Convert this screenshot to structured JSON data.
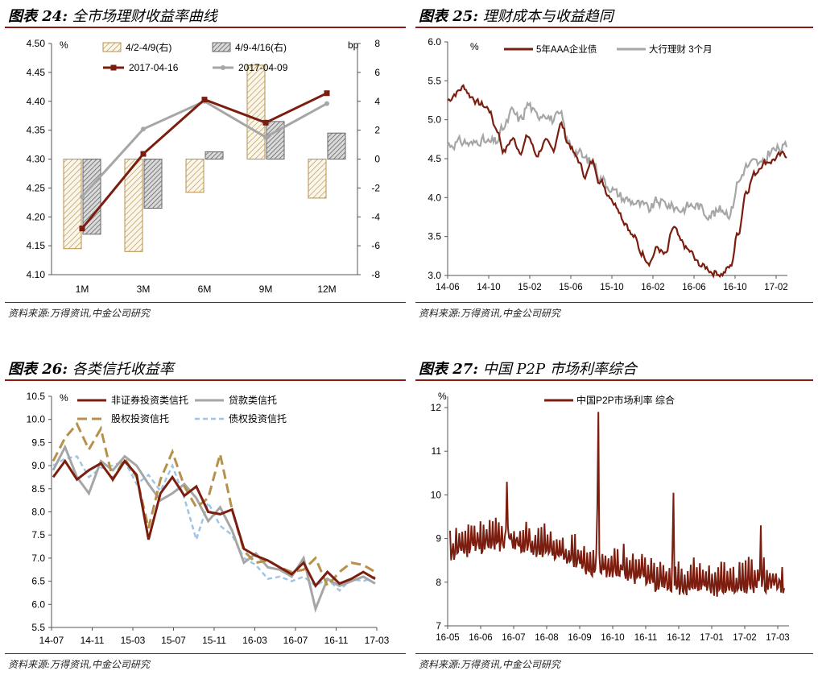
{
  "colors": {
    "brand": "#8a1a12",
    "maroon": "#7b1e10",
    "gray": "#a6a6a6",
    "tan": "#b5914c",
    "lightblue": "#9fc5e6",
    "hatchgray": "#666666"
  },
  "panels": [
    {
      "id": "p24",
      "title_label": "图表 24:",
      "title_text": "全市场理财收益率曲线",
      "source": "资料来源:万得资讯,中金公司研究"
    },
    {
      "id": "p25",
      "title_label": "图表 25:",
      "title_text": "理财成本与收益趋同",
      "source": "资料来源:万得资讯,中金公司研究"
    },
    {
      "id": "p26",
      "title_label": "图表 26:",
      "title_text": "各类信托收益率",
      "source": "资料来源:万得资讯,中金公司研究"
    },
    {
      "id": "p27",
      "title_label": "图表 27:",
      "title_text": "中国 P2P 市场利率综合",
      "source": "资料来源:万得资讯,中金公司研究"
    }
  ],
  "chart_data": [
    {
      "id": "p24",
      "type": "bar+line",
      "categories": [
        "1M",
        "3M",
        "6M",
        "9M",
        "12M"
      ],
      "y_left": {
        "unit": "%",
        "min": 4.1,
        "max": 4.5,
        "step": 0.05,
        "ticks": [
          "4.10",
          "4.15",
          "4.20",
          "4.25",
          "4.30",
          "4.35",
          "4.40",
          "4.45",
          "4.50"
        ]
      },
      "y_right": {
        "unit": "bp",
        "min": -8,
        "max": 8,
        "step": 2,
        "ticks": [
          "-8",
          "-6",
          "-4",
          "-2",
          "0",
          "2",
          "4",
          "6",
          "8"
        ]
      },
      "bars": [
        {
          "name": "4/2-4/9(右)",
          "axis": "right",
          "values": [
            -6.2,
            -6.4,
            -2.3,
            6.5,
            -2.7
          ]
        },
        {
          "name": "4/9-4/16(右)",
          "axis": "right",
          "values": [
            -5.2,
            -3.4,
            0.5,
            2.6,
            1.8
          ]
        }
      ],
      "series": [
        {
          "name": "2017-04-16",
          "axis": "left",
          "values": [
            4.18,
            4.309,
            4.403,
            4.363,
            4.414
          ]
        },
        {
          "name": "2017-04-09",
          "axis": "left",
          "values": [
            4.235,
            4.352,
            4.4,
            4.338,
            4.396
          ]
        }
      ]
    },
    {
      "id": "p25",
      "type": "line",
      "x_ticks": [
        "14-06",
        "14-10",
        "15-02",
        "15-06",
        "15-10",
        "16-02",
        "16-06",
        "16-10",
        "17-02"
      ],
      "y": {
        "unit": "%",
        "min": 3.0,
        "max": 6.0,
        "step": 0.5,
        "ticks": [
          "3.0",
          "3.5",
          "4.0",
          "4.5",
          "5.0",
          "5.5",
          "6.0"
        ]
      },
      "series": [
        {
          "name": "5年AAA企业债",
          "anchors": [
            5.25,
            5.35,
            5.42,
            5.3,
            5.2,
            5.15,
            4.9,
            4.6,
            4.75,
            4.62,
            4.78,
            4.55,
            4.7,
            4.6,
            4.95,
            4.7,
            4.5,
            4.3,
            4.45,
            4.2,
            4.05,
            3.9,
            3.7,
            3.5,
            3.3,
            3.2,
            3.35,
            3.25,
            3.6,
            3.4,
            3.3,
            3.15,
            3.1,
            3.05,
            3.03,
            3.1,
            3.55,
            4.1,
            4.3,
            4.45,
            4.48,
            4.52,
            4.55
          ]
        },
        {
          "name": "大行理财 3个月",
          "anchors": [
            4.68,
            4.7,
            4.72,
            4.68,
            4.75,
            4.7,
            4.72,
            4.9,
            5.1,
            5.0,
            5.2,
            5.05,
            5.1,
            5.0,
            5.05,
            4.7,
            4.6,
            4.5,
            4.45,
            4.25,
            4.15,
            4.05,
            3.98,
            3.95,
            3.9,
            3.85,
            3.95,
            3.92,
            3.88,
            3.85,
            3.9,
            3.9,
            3.8,
            3.8,
            3.85,
            3.8,
            4.2,
            4.4,
            4.45,
            4.42,
            4.6,
            4.62,
            4.65
          ]
        }
      ]
    },
    {
      "id": "p26",
      "type": "line",
      "x_ticks": [
        "14-07",
        "14-11",
        "15-03",
        "15-07",
        "15-11",
        "16-03",
        "16-07",
        "16-11",
        "17-03"
      ],
      "y": {
        "unit": "%",
        "min": 5.5,
        "max": 10.5,
        "step": 0.5,
        "ticks": [
          "5.5",
          "6.0",
          "6.5",
          "7.0",
          "7.5",
          "8.0",
          "8.5",
          "9.0",
          "9.5",
          "10.0",
          "10.5"
        ]
      },
      "series": [
        {
          "name": "非证券投资类信托",
          "values": [
            8.75,
            9.1,
            8.7,
            8.9,
            9.05,
            8.7,
            9.1,
            8.8,
            7.4,
            8.4,
            8.75,
            8.35,
            8.55,
            8.0,
            7.95,
            8.05,
            7.2,
            7.05,
            6.95,
            6.8,
            6.65,
            6.9,
            6.4,
            6.7,
            6.45,
            6.55,
            6.7,
            6.55
          ]
        },
        {
          "name": "贷款类信托",
          "values": [
            8.9,
            9.4,
            8.75,
            8.4,
            9.1,
            8.9,
            9.2,
            9.0,
            8.6,
            8.25,
            8.4,
            8.6,
            8.3,
            7.8,
            8.1,
            7.6,
            6.9,
            7.1,
            6.8,
            6.75,
            6.6,
            7.0,
            5.9,
            6.55,
            6.4,
            6.5,
            6.6,
            6.45
          ]
        },
        {
          "name": "股权投资信托",
          "values": [
            9.1,
            9.6,
            9.9,
            9.35,
            9.8,
            8.7,
            9.15,
            8.75,
            7.65,
            8.7,
            9.3,
            8.55,
            8.1,
            8.3,
            9.25,
            8.05,
            7.15,
            6.9,
            6.95,
            6.8,
            6.7,
            6.75,
            7.0,
            6.4,
            6.7,
            6.9,
            6.85,
            6.7
          ]
        },
        {
          "name": "债权投资信托",
          "values": [
            9.0,
            9.15,
            9.2,
            8.75,
            8.95,
            9.0,
            9.1,
            8.6,
            8.8,
            8.45,
            9.0,
            8.3,
            7.4,
            8.2,
            7.7,
            7.5,
            7.0,
            6.85,
            6.55,
            6.6,
            6.5,
            6.6,
            6.4,
            6.55,
            6.3,
            6.55,
            6.5,
            6.6
          ]
        }
      ]
    },
    {
      "id": "p27",
      "type": "line",
      "x_ticks": [
        "16-05",
        "16-06",
        "16-07",
        "16-08",
        "16-09",
        "16-10",
        "16-11",
        "16-12",
        "17-01",
        "17-02",
        "17-03"
      ],
      "y": {
        "unit": "%",
        "min": 7,
        "max": 12,
        "step": 1,
        "ticks": [
          "7",
          "8",
          "9",
          "10",
          "11",
          "12"
        ]
      },
      "series": [
        {
          "name": "中国P2P市场利率 综合",
          "baseline": [
            8.7,
            8.85,
            8.95,
            9.0,
            9.0,
            8.9,
            8.85,
            8.8,
            8.65,
            8.5,
            8.4,
            8.35,
            8.3,
            8.2,
            8.1,
            8.05,
            8.0,
            8.0,
            7.95,
            8.0,
            8.0,
            8.05,
            8.05,
            8.0
          ],
          "spikes": [
            {
              "pos": 0.17,
              "value": 10.3
            },
            {
              "pos": 0.445,
              "value": 11.9
            },
            {
              "pos": 0.67,
              "value": 10.05
            },
            {
              "pos": 0.93,
              "value": 9.3
            }
          ]
        }
      ]
    }
  ]
}
